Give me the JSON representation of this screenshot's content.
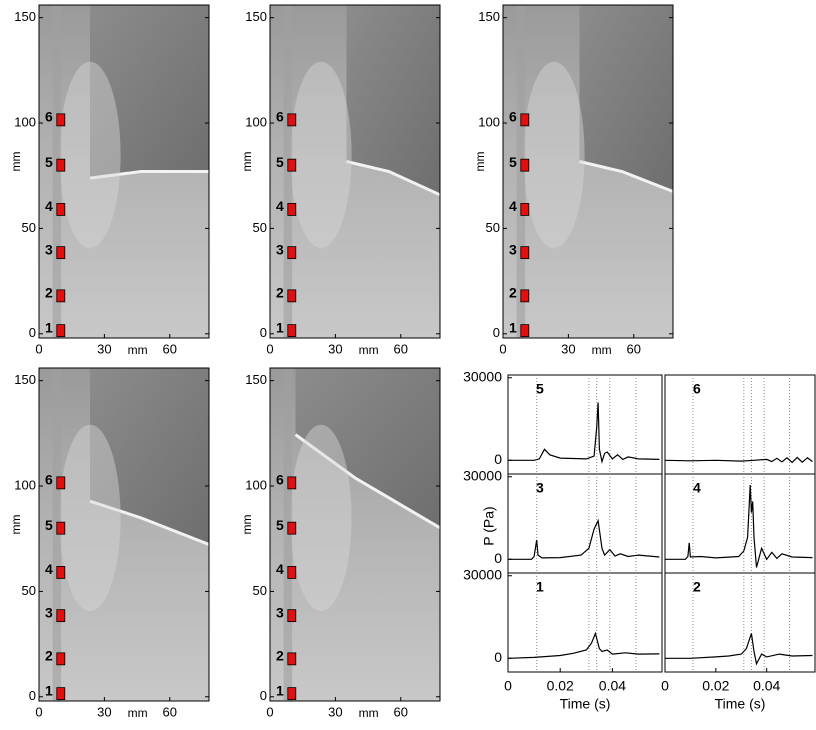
{
  "chart_data": [
    {
      "type": "image",
      "xlim": [
        0,
        78
      ],
      "ylim": [
        -2,
        156
      ],
      "xticks": [
        0,
        30,
        60
      ],
      "yticks": [
        0,
        50,
        100,
        150
      ],
      "xlabel": "mm",
      "ylabel": "mm",
      "sensors": {
        "labels": [
          "1",
          "2",
          "3",
          "4",
          "5",
          "6"
        ],
        "y": [
          1.5,
          18,
          38.5,
          59,
          80,
          101.5
        ],
        "x": [
          10,
          10,
          10,
          10,
          10,
          10
        ],
        "color": "#e01010"
      }
    },
    {
      "type": "image",
      "xlim": [
        0,
        78
      ],
      "ylim": [
        -2,
        156
      ],
      "xticks": [
        0,
        30,
        60
      ],
      "yticks": [
        0,
        50,
        100,
        150
      ],
      "xlabel": "mm",
      "ylabel": "mm",
      "sensors": {
        "labels": [
          "1",
          "2",
          "3",
          "4",
          "5",
          "6"
        ],
        "y": [
          1.5,
          18,
          38.5,
          59,
          80,
          101.5
        ],
        "x": [
          10,
          10,
          10,
          10,
          10,
          10
        ],
        "color": "#e01010"
      }
    },
    {
      "type": "image",
      "xlim": [
        0,
        78
      ],
      "ylim": [
        -2,
        156
      ],
      "xticks": [
        0,
        30,
        60
      ],
      "yticks": [
        0,
        50,
        100,
        150
      ],
      "xlabel": "mm",
      "ylabel": "mm",
      "sensors": {
        "labels": [
          "1",
          "2",
          "3",
          "4",
          "5",
          "6"
        ],
        "y": [
          1.5,
          18,
          38.5,
          59,
          80,
          101.5
        ],
        "x": [
          10,
          10,
          10,
          10,
          10,
          10
        ],
        "color": "#e01010"
      }
    },
    {
      "type": "image",
      "xlim": [
        0,
        78
      ],
      "ylim": [
        -2,
        156
      ],
      "xticks": [
        0,
        30,
        60
      ],
      "yticks": [
        0,
        50,
        100,
        150
      ],
      "xlabel": "mm",
      "ylabel": "mm",
      "sensors": {
        "labels": [
          "1",
          "2",
          "3",
          "4",
          "5",
          "6"
        ],
        "y": [
          1.5,
          18,
          38.5,
          59,
          80,
          101.5
        ],
        "x": [
          10,
          10,
          10,
          10,
          10,
          10
        ],
        "color": "#e01010"
      }
    },
    {
      "type": "image",
      "xlim": [
        0,
        78
      ],
      "ylim": [
        -2,
        156
      ],
      "xticks": [
        0,
        30,
        60
      ],
      "yticks": [
        0,
        50,
        100,
        150
      ],
      "xlabel": "mm",
      "ylabel": "mm",
      "sensors": {
        "labels": [
          "1",
          "2",
          "3",
          "4",
          "5",
          "6"
        ],
        "y": [
          1.5,
          18,
          38.5,
          59,
          80,
          101.5
        ],
        "x": [
          10,
          10,
          10,
          10,
          10,
          10
        ],
        "color": "#e01010"
      }
    },
    {
      "type": "line",
      "label": "5",
      "xlim": [
        0,
        0.059
      ],
      "ylim": [
        -5000,
        31000
      ],
      "yticks": [
        0,
        30000
      ],
      "color": "#000000",
      "vlines": [
        0.011,
        0.031,
        0.034,
        0.039,
        0.049
      ],
      "x": [
        0,
        0.01,
        0.012,
        0.014,
        0.016,
        0.02,
        0.03,
        0.033,
        0.034,
        0.0345,
        0.035,
        0.036,
        0.037,
        0.038,
        0.04,
        0.042,
        0.044,
        0.046,
        0.05,
        0.058
      ],
      "values": [
        0,
        0,
        500,
        4000,
        2000,
        800,
        500,
        1500,
        12000,
        21000,
        4000,
        -500,
        2500,
        3000,
        500,
        2000,
        300,
        1200,
        500,
        300
      ]
    },
    {
      "type": "line",
      "label": "6",
      "xlim": [
        0,
        0.059
      ],
      "ylim": [
        -5000,
        31000
      ],
      "color": "#000000",
      "vlines": [
        0.011,
        0.031,
        0.034,
        0.039,
        0.049
      ],
      "x": [
        0,
        0.01,
        0.02,
        0.03,
        0.035,
        0.04,
        0.042,
        0.044,
        0.046,
        0.048,
        0.05,
        0.052,
        0.054,
        0.056,
        0.058
      ],
      "values": [
        0,
        -200,
        0,
        -300,
        0,
        300,
        -500,
        700,
        -600,
        900,
        -800,
        1000,
        -700,
        900,
        -500
      ]
    },
    {
      "type": "line",
      "label": "3",
      "xlim": [
        0,
        0.059
      ],
      "ylim": [
        -5000,
        31000
      ],
      "yticks": [
        0,
        30000
      ],
      "ylabel": "P (Pa)",
      "color": "#000000",
      "vlines": [
        0.011,
        0.031,
        0.034,
        0.039,
        0.049
      ],
      "x": [
        0,
        0.009,
        0.01,
        0.011,
        0.0115,
        0.013,
        0.02,
        0.028,
        0.031,
        0.033,
        0.0345,
        0.036,
        0.037,
        0.039,
        0.041,
        0.043,
        0.046,
        0.05,
        0.058
      ],
      "values": [
        0,
        0,
        1000,
        7000,
        1500,
        500,
        600,
        1500,
        4000,
        11000,
        14000,
        4000,
        1500,
        3500,
        1200,
        2000,
        1000,
        1500,
        800
      ]
    },
    {
      "type": "line",
      "label": "4",
      "xlim": [
        0,
        0.059
      ],
      "ylim": [
        -5000,
        31000
      ],
      "color": "#000000",
      "vlines": [
        0.011,
        0.031,
        0.034,
        0.039,
        0.049
      ],
      "x": [
        0,
        0.008,
        0.009,
        0.0095,
        0.01,
        0.014,
        0.02,
        0.029,
        0.031,
        0.0325,
        0.0335,
        0.034,
        0.0345,
        0.035,
        0.036,
        0.038,
        0.04,
        0.042,
        0.044,
        0.046,
        0.05,
        0.058
      ],
      "values": [
        0,
        0,
        1000,
        6000,
        800,
        1000,
        500,
        1000,
        3000,
        8000,
        27000,
        17000,
        21000,
        8000,
        -3000,
        4000,
        0,
        2500,
        300,
        2000,
        800,
        600
      ]
    },
    {
      "type": "line",
      "label": "1",
      "xlim": [
        0,
        0.059
      ],
      "ylim": [
        -5000,
        31000
      ],
      "yticks": [
        0,
        30000
      ],
      "xticks": [
        0,
        0.02,
        0.04
      ],
      "xlabel": "Time (s)",
      "color": "#000000",
      "vlines": [
        0.011,
        0.031,
        0.034,
        0.039,
        0.049
      ],
      "x": [
        0,
        0.01,
        0.02,
        0.025,
        0.03,
        0.032,
        0.0335,
        0.035,
        0.036,
        0.038,
        0.04,
        0.045,
        0.05,
        0.058
      ],
      "values": [
        0,
        300,
        1000,
        1800,
        3000,
        5500,
        9000,
        3500,
        2500,
        3000,
        1500,
        2000,
        1500,
        1600
      ]
    },
    {
      "type": "line",
      "label": "2",
      "xlim": [
        0,
        0.059
      ],
      "ylim": [
        -5000,
        31000
      ],
      "xticks": [
        0,
        0.02,
        0.04
      ],
      "xlabel": "Time (s)",
      "color": "#000000",
      "vlines": [
        0.011,
        0.031,
        0.034,
        0.039,
        0.049
      ],
      "x": [
        0,
        0.01,
        0.02,
        0.025,
        0.03,
        0.032,
        0.034,
        0.035,
        0.036,
        0.038,
        0.04,
        0.045,
        0.05,
        0.058
      ],
      "values": [
        0,
        0,
        500,
        800,
        1500,
        3500,
        9000,
        2500,
        -2000,
        1500,
        500,
        1500,
        800,
        1000
      ]
    }
  ]
}
